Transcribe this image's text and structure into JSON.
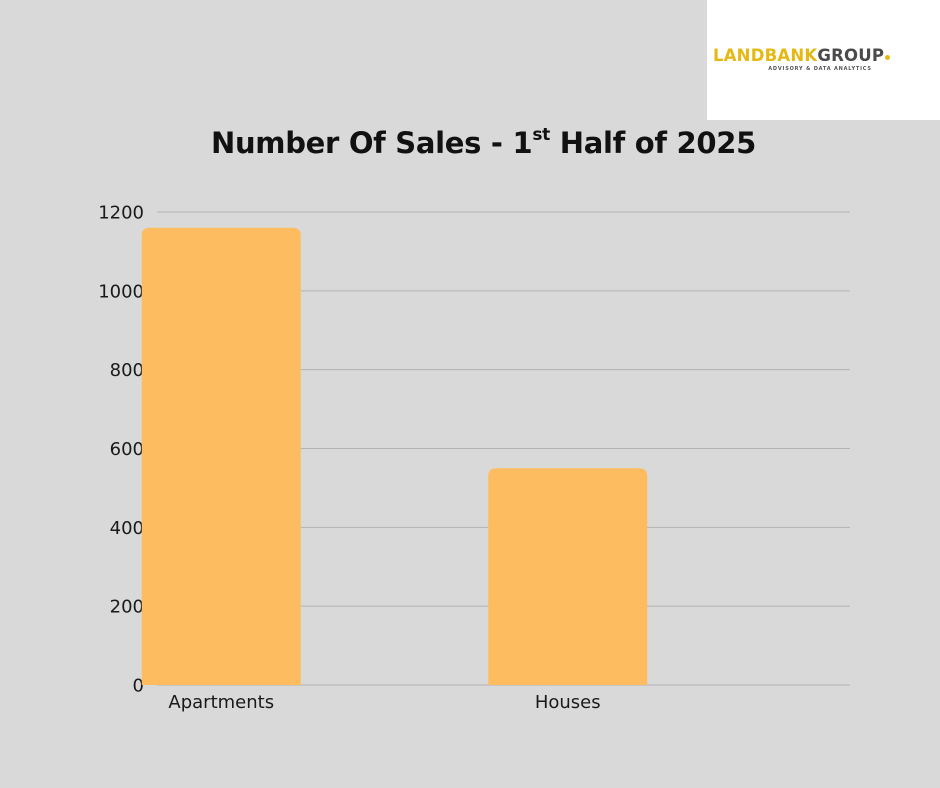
{
  "logo": {
    "word_part1": "LANDBANK",
    "word_part2": "GROUP",
    "tagline": "ADVISORY & DATA ANALYTICS"
  },
  "chart_data": {
    "type": "bar",
    "title_main": "Number Of Sales - 1",
    "title_sup": "st",
    "title_rest": " Half of 2025",
    "categories": [
      "Apartments",
      "Houses"
    ],
    "values": [
      1160,
      550
    ],
    "ylim": [
      0,
      1200
    ],
    "yticks": [
      0,
      200,
      400,
      600,
      800,
      1000,
      1200
    ],
    "grid": true,
    "bar_color": "#fdbc5f",
    "grid_color": "#b3b3b3"
  }
}
